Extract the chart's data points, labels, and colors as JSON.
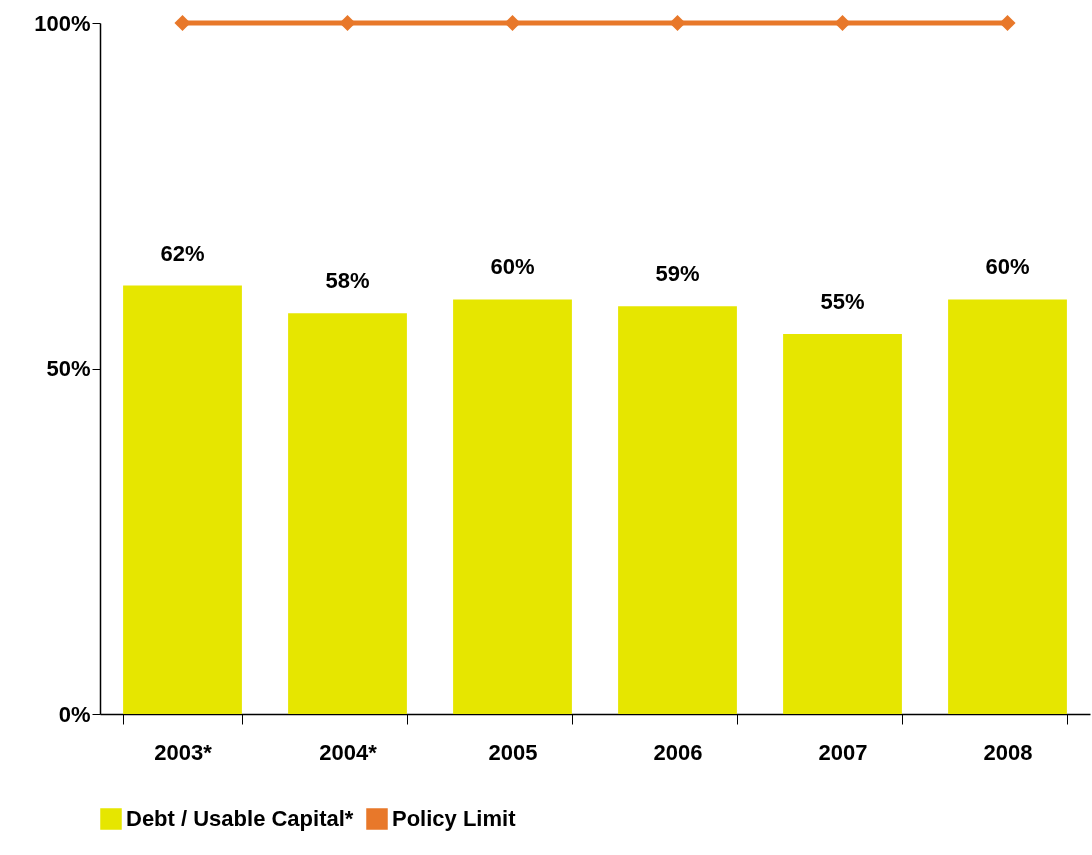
{
  "chart_data": {
    "type": "bar",
    "categories": [
      "2003*",
      "2004*",
      "2005",
      "2006",
      "2007",
      "2008"
    ],
    "series": [
      {
        "name": "Debt / Usable Capital*",
        "color": "#e6e600",
        "values": [
          62,
          58,
          60,
          59,
          55,
          60
        ],
        "value_labels": [
          "62%",
          "58%",
          "60%",
          "59%",
          "55%",
          "60%"
        ]
      },
      {
        "name": "Policy Limit",
        "type": "line",
        "color": "#e8782a",
        "marker": "diamond",
        "values": [
          100,
          100,
          100,
          100,
          100,
          100
        ]
      }
    ],
    "ylim": [
      0,
      100
    ],
    "yticks": [
      {
        "value": 0,
        "label": "0%"
      },
      {
        "value": 50,
        "label": "50%"
      },
      {
        "value": 100,
        "label": "100%"
      }
    ],
    "grid": false,
    "legend": "bottom"
  }
}
